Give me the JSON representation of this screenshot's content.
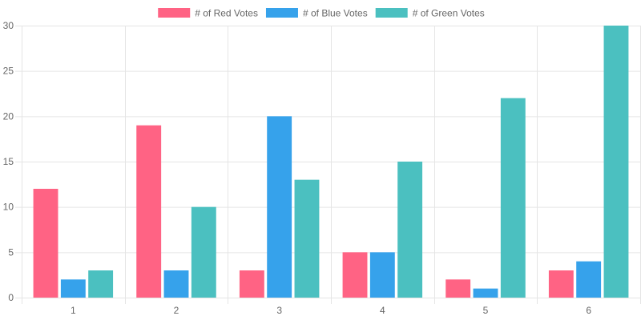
{
  "chart_data": {
    "type": "bar",
    "categories": [
      "1",
      "2",
      "3",
      "4",
      "5",
      "6"
    ],
    "series": [
      {
        "name": "# of Red Votes",
        "values": [
          12,
          19,
          3,
          5,
          2,
          3
        ],
        "color": "#ff6384"
      },
      {
        "name": "# of Blue Votes",
        "values": [
          2,
          3,
          20,
          5,
          1,
          4
        ],
        "color": "#36a2eb"
      },
      {
        "name": "# of Green Votes",
        "values": [
          3,
          10,
          13,
          15,
          22,
          30
        ],
        "color": "#4bc0c0"
      }
    ],
    "ylim": [
      0,
      30
    ],
    "yticks": [
      0,
      5,
      10,
      15,
      20,
      25,
      30
    ],
    "grid": true,
    "legend_position": "top"
  }
}
